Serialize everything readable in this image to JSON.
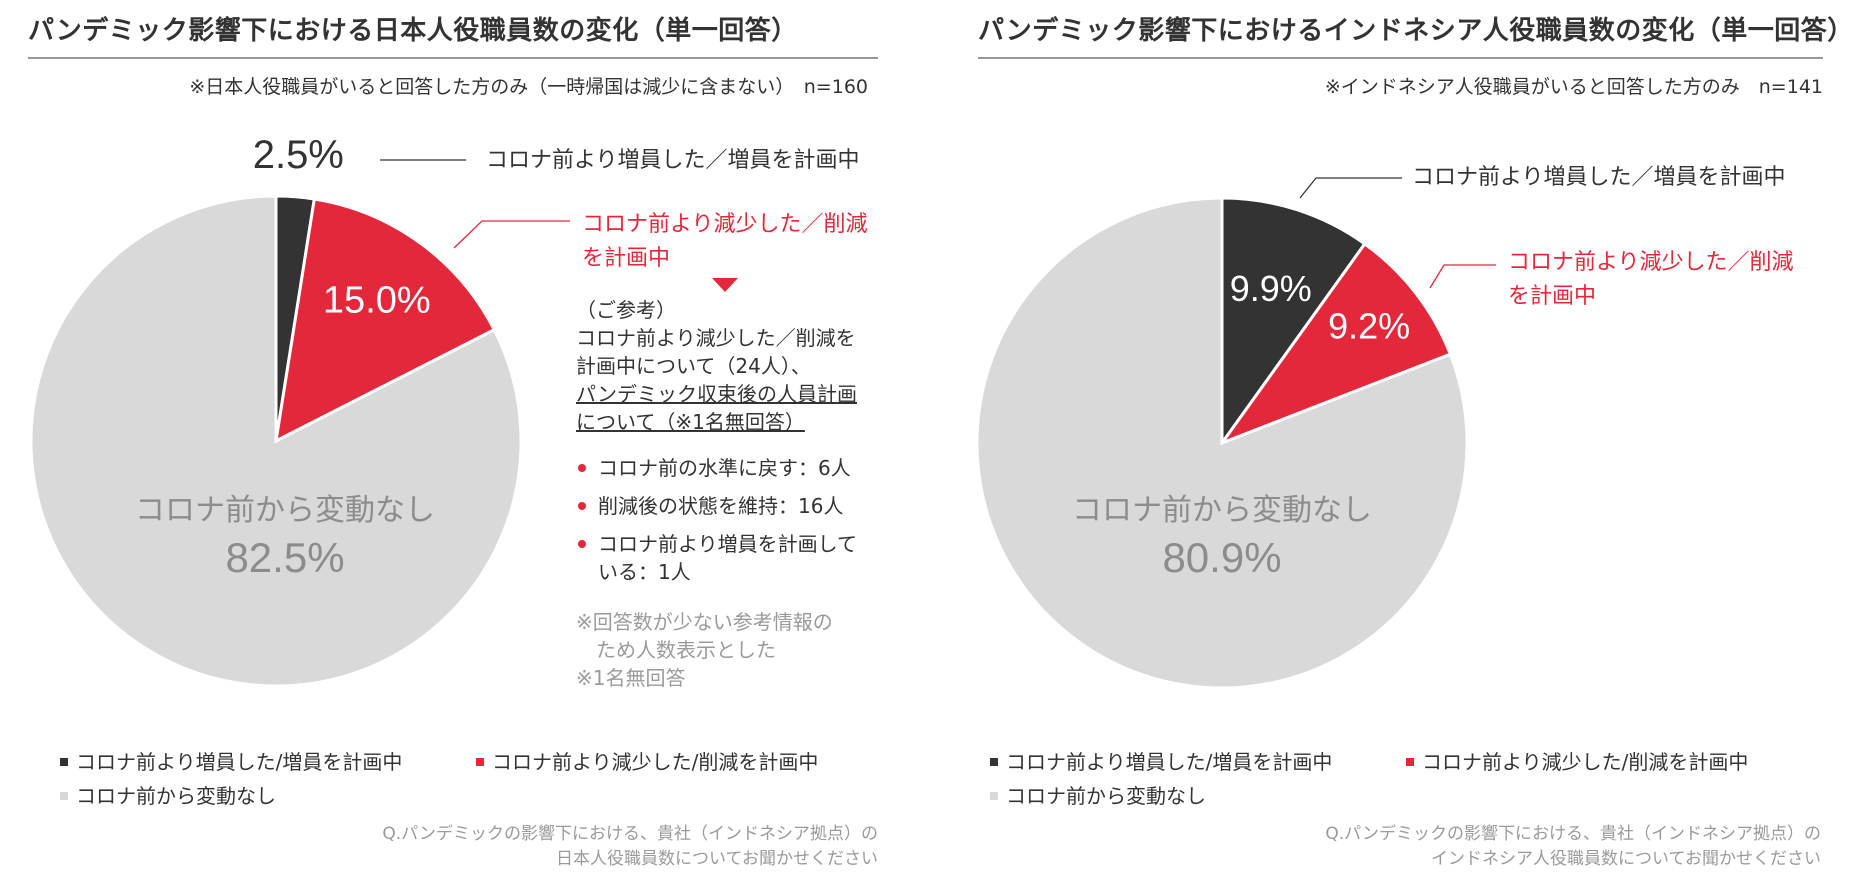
{
  "colors": {
    "dark": "#333333",
    "red": "#e3283c",
    "light": "#d9d9d9",
    "gray_text": "#9a9a9a"
  },
  "chart_data": [
    {
      "type": "pie",
      "title": "パンデミック影響下における日本人役職員数の変化（単一回答）",
      "note": "※日本人役職員がいると回答した方のみ（一時帰国は減少に含まない）　n=160",
      "slices": [
        {
          "label": "コロナ前より増員した／増員を計画中",
          "value": 2.5,
          "value_label": "2.5%",
          "color": "#333333"
        },
        {
          "label": "コロナ前より減少した／削減を計画中",
          "value": 15.0,
          "value_label": "15.0%",
          "color": "#e3283c"
        },
        {
          "label": "コロナ前から変動なし",
          "value": 82.5,
          "value_label": "82.5%",
          "color": "#d9d9d9"
        }
      ],
      "callouts": {
        "dark": "コロナ前より増員した／増員を計画中",
        "red_line1": "コロナ前より減少した／削減",
        "red_line2": "を計画中"
      },
      "legend": [
        "コロナ前より増員した/増員を計画中",
        "コロナ前より減少した/削減を計画中",
        "コロナ前から変動なし"
      ],
      "question_line1": "Q.パンデミックの影響下における、貴社（インドネシア拠点）の",
      "question_line2": "日本人役職員数についてお聞かせください",
      "reference": {
        "heading": "（ご参考）",
        "line1": "コロナ前より減少した／削減を",
        "line2": "計画中について（24人）、",
        "line3": "パンデミック収束後の人員計画",
        "line4": "について（※1名無回答）",
        "items": [
          {
            "line1": "コロナ前の水準に戻す：6人",
            "line2": ""
          },
          {
            "line1": "削減後の状態を維持：16人",
            "line2": ""
          },
          {
            "line1": "コロナ前より増員を計画して",
            "line2": "いる：1人"
          }
        ],
        "note1": "※回答数が少ない参考情報の",
        "note2": "　ため人数表示とした",
        "note3": "※1名無回答"
      }
    },
    {
      "type": "pie",
      "title": "パンデミック影響下におけるインドネシア人役職員数の変化（単一回答）",
      "note": "※インドネシア人役職員がいると回答した方のみ　n=141",
      "slices": [
        {
          "label": "コロナ前より増員した／増員を計画中",
          "value": 9.9,
          "value_label": "9.9%",
          "color": "#333333"
        },
        {
          "label": "コロナ前より減少した／削減を計画中",
          "value": 9.2,
          "value_label": "9.2%",
          "color": "#e3283c"
        },
        {
          "label": "コロナ前から変動なし",
          "value": 80.9,
          "value_label": "80.9%",
          "color": "#d9d9d9"
        }
      ],
      "callouts": {
        "dark": "コロナ前より増員した／増員を計画中",
        "red_line1": "コロナ前より減少した／削減",
        "red_line2": "を計画中"
      },
      "legend": [
        "コロナ前より増員した/増員を計画中",
        "コロナ前より減少した/削減を計画中",
        "コロナ前から変動なし"
      ],
      "question_line1": "Q.パンデミックの影響下における、貴社（インドネシア拠点）の",
      "question_line2": "インドネシア人役職員数についてお聞かせください"
    }
  ]
}
